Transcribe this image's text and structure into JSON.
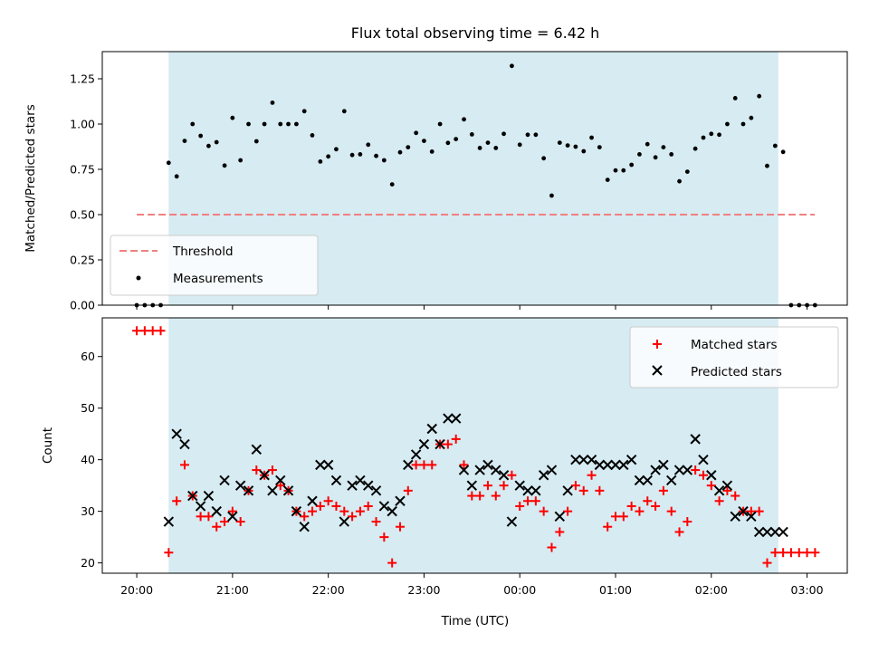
{
  "chart_data": [
    {
      "type": "scatter",
      "title": "Flux total observing time = 6.42 h",
      "ylabel": "Matched/Predicted stars",
      "xlabel": "",
      "ylim": [
        0,
        1.4
      ],
      "yticks": [
        "0.00",
        "0.25",
        "0.50",
        "0.75",
        "1.00",
        "1.25"
      ],
      "shaded_region": {
        "x_start_h": 20.333,
        "x_end_h": 26.7,
        "color": "#add8e6"
      },
      "threshold": {
        "name": "Threshold",
        "value": 0.5,
        "x_start_h": 20.0,
        "x_end_h": 27.08,
        "color": "#f08080"
      },
      "legend_position": "lower-left",
      "legend": [
        "Threshold",
        "Measurements"
      ],
      "series": [
        {
          "name": "Measurements",
          "color": "#000000",
          "points": [
            [
              20.0,
              0
            ],
            [
              20.083,
              0
            ],
            [
              20.167,
              0
            ],
            [
              20.25,
              0
            ],
            [
              20.333,
              0.786
            ],
            [
              20.417,
              0.711
            ],
            [
              20.5,
              0.907
            ],
            [
              20.583,
              1.0
            ],
            [
              20.667,
              0.935
            ],
            [
              20.75,
              0.879
            ],
            [
              20.833,
              0.9
            ],
            [
              20.917,
              0.771
            ],
            [
              21.0,
              1.034
            ],
            [
              21.083,
              0.8
            ],
            [
              21.167,
              1.0
            ],
            [
              21.25,
              0.905
            ],
            [
              21.333,
              1.0
            ],
            [
              21.417,
              1.118
            ],
            [
              21.5,
              1.0
            ],
            [
              21.583,
              1.0
            ],
            [
              21.667,
              1.0
            ],
            [
              21.75,
              1.071
            ],
            [
              21.833,
              0.938
            ],
            [
              21.917,
              0.793
            ],
            [
              22.0,
              0.821
            ],
            [
              22.083,
              0.861
            ],
            [
              22.167,
              1.071
            ],
            [
              22.25,
              0.829
            ],
            [
              22.333,
              0.833
            ],
            [
              22.417,
              0.886
            ],
            [
              22.5,
              0.824
            ],
            [
              22.583,
              0.8
            ],
            [
              22.667,
              0.667
            ],
            [
              22.75,
              0.844
            ],
            [
              22.833,
              0.872
            ],
            [
              22.917,
              0.951
            ],
            [
              23.0,
              0.907
            ],
            [
              23.083,
              0.848
            ],
            [
              23.167,
              1.0
            ],
            [
              23.25,
              0.896
            ],
            [
              23.333,
              0.917
            ],
            [
              23.417,
              1.026
            ],
            [
              23.5,
              0.943
            ],
            [
              23.583,
              0.868
            ],
            [
              23.667,
              0.897
            ],
            [
              23.75,
              0.868
            ],
            [
              23.833,
              0.946
            ],
            [
              23.917,
              1.321
            ],
            [
              24.0,
              0.886
            ],
            [
              24.083,
              0.941
            ],
            [
              24.167,
              0.941
            ],
            [
              24.25,
              0.811
            ],
            [
              24.333,
              0.605
            ],
            [
              24.417,
              0.897
            ],
            [
              24.5,
              0.882
            ],
            [
              24.583,
              0.875
            ],
            [
              24.667,
              0.85
            ],
            [
              24.75,
              0.925
            ],
            [
              24.833,
              0.872
            ],
            [
              24.917,
              0.692
            ],
            [
              25.0,
              0.744
            ],
            [
              25.083,
              0.744
            ],
            [
              25.167,
              0.775
            ],
            [
              25.25,
              0.833
            ],
            [
              25.333,
              0.889
            ],
            [
              25.417,
              0.816
            ],
            [
              25.5,
              0.872
            ],
            [
              25.583,
              0.833
            ],
            [
              25.667,
              0.684
            ],
            [
              25.75,
              0.737
            ],
            [
              25.833,
              0.864
            ],
            [
              25.917,
              0.925
            ],
            [
              26.0,
              0.946
            ],
            [
              26.083,
              0.941
            ],
            [
              26.167,
              1.0
            ],
            [
              26.25,
              1.143
            ],
            [
              26.333,
              1.0
            ],
            [
              26.417,
              1.034
            ],
            [
              26.5,
              1.154
            ],
            [
              26.583,
              0.769
            ],
            [
              26.667,
              0.88
            ],
            [
              26.75,
              0.846
            ],
            [
              26.833,
              0
            ],
            [
              26.917,
              0
            ],
            [
              27.0,
              0
            ],
            [
              27.083,
              0
            ]
          ]
        }
      ]
    },
    {
      "type": "scatter",
      "title": "",
      "ylabel": "Count",
      "xlabel": "Time (UTC)",
      "ylim": [
        18,
        67.5
      ],
      "yticks": [
        "20",
        "30",
        "40",
        "50",
        "60"
      ],
      "xlim": [
        19.64,
        27.42
      ],
      "xtick_values_h": [
        20,
        21,
        22,
        23,
        24,
        25,
        26,
        27
      ],
      "xticks": [
        "20:00",
        "21:00",
        "22:00",
        "23:00",
        "00:00",
        "01:00",
        "02:00",
        "03:00"
      ],
      "shaded_region": {
        "x_start_h": 20.333,
        "x_end_h": 26.7,
        "color": "#add8e6"
      },
      "legend_position": "top-right",
      "legend": [
        "Matched stars",
        "Predicted stars"
      ],
      "series": [
        {
          "name": "Matched stars",
          "color": "#ff0000",
          "marker": "+",
          "values": [
            65,
            65,
            65,
            65,
            22,
            32,
            39,
            33,
            29,
            29,
            27,
            28,
            30,
            28,
            34,
            38,
            37,
            38,
            35,
            34,
            30,
            29,
            30,
            31,
            32,
            31,
            30,
            29,
            30,
            31,
            28,
            25,
            20,
            27,
            34,
            39,
            39,
            39,
            43,
            43,
            44,
            39,
            33,
            33,
            35,
            33,
            35,
            37,
            31,
            32,
            32,
            30,
            23,
            26,
            30,
            35,
            34,
            37,
            34,
            27,
            29,
            29,
            31,
            30,
            32,
            31,
            34,
            30,
            26,
            28,
            38,
            37,
            35,
            32,
            34,
            33,
            30,
            30,
            30,
            20,
            22,
            22,
            22,
            22,
            22,
            22
          ]
        },
        {
          "name": "Predicted stars",
          "color": "#000000",
          "marker": "x",
          "values": [
            null,
            null,
            null,
            null,
            28,
            45,
            43,
            33,
            31,
            33,
            30,
            36,
            29,
            35,
            34,
            42,
            37,
            34,
            36,
            34,
            30,
            27,
            32,
            39,
            39,
            36,
            28,
            35,
            36,
            35,
            34,
            31,
            30,
            32,
            39,
            41,
            43,
            46,
            43,
            48,
            48,
            38,
            35,
            38,
            39,
            38,
            37,
            28,
            35,
            34,
            34,
            37,
            38,
            29,
            34,
            40,
            40,
            40,
            39,
            39,
            39,
            39,
            40,
            36,
            36,
            38,
            39,
            36,
            38,
            38,
            44,
            40,
            37,
            34,
            35,
            29,
            30,
            29,
            26,
            26,
            26,
            26,
            null,
            null,
            null,
            null
          ]
        }
      ]
    }
  ]
}
